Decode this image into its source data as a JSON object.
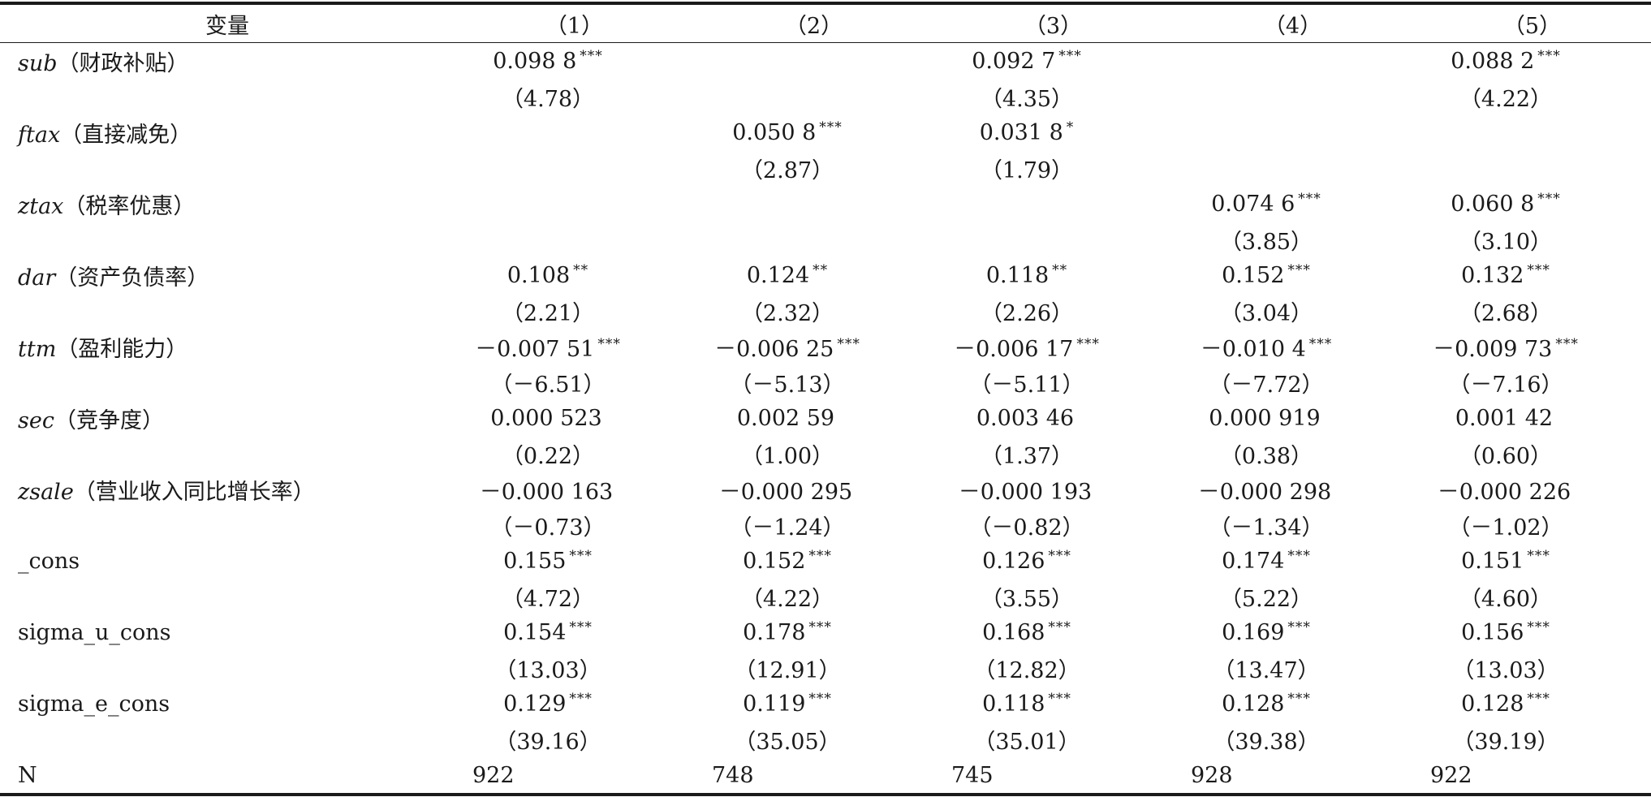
{
  "table": {
    "headers": [
      "变量",
      "（1）",
      "（2）",
      "（3）",
      "（4）",
      "（5）"
    ],
    "rows": [
      {
        "var_italic": "sub",
        "var_rest": "（财政补贴）",
        "coef": [
          "0.098 8",
          "",
          "0.092 7",
          "",
          "0.088 2"
        ],
        "stars": [
          "***",
          "",
          "***",
          "",
          "***"
        ],
        "tstat": [
          "（4.78）",
          "",
          "（4.35）",
          "",
          "（4.22）"
        ]
      },
      {
        "var_italic": "ftax",
        "var_rest": "（直接减免）",
        "coef": [
          "",
          "0.050 8",
          "0.031 8",
          "",
          ""
        ],
        "stars": [
          "",
          "***",
          "*",
          "",
          ""
        ],
        "tstat": [
          "",
          "（2.87）",
          "（1.79）",
          "",
          ""
        ]
      },
      {
        "var_italic": "ztax",
        "var_rest": "（税率优惠）",
        "coef": [
          "",
          "",
          "",
          "0.074 6",
          "0.060 8"
        ],
        "stars": [
          "",
          "",
          "",
          "***",
          "***"
        ],
        "tstat": [
          "",
          "",
          "",
          "（3.85）",
          "（3.10）"
        ]
      },
      {
        "var_italic": "dar",
        "var_rest": "（资产负债率）",
        "coef": [
          "0.108",
          "0.124",
          "0.118",
          "0.152",
          "0.132"
        ],
        "stars": [
          "**",
          "**",
          "**",
          "***",
          "***"
        ],
        "tstat": [
          "（2.21）",
          "（2.32）",
          "（2.26）",
          "（3.04）",
          "（2.68）"
        ]
      },
      {
        "var_italic": "ttm",
        "var_rest": "（盈利能力）",
        "coef": [
          "－0.007 51",
          "－0.006 25",
          "－0.006 17",
          "－0.010 4",
          "－0.009 73"
        ],
        "stars": [
          "***",
          "***",
          "***",
          "***",
          "***"
        ],
        "tstat": [
          "（－6.51）",
          "（－5.13）",
          "（－5.11）",
          "（－7.72）",
          "（－7.16）"
        ]
      },
      {
        "var_italic": "sec",
        "var_rest": "（竞争度）",
        "coef": [
          "0.000 523",
          "0.002 59",
          "0.003 46",
          "0.000 919",
          "0.001 42"
        ],
        "stars": [
          "",
          "",
          "",
          "",
          ""
        ],
        "tstat": [
          "（0.22）",
          "（1.00）",
          "（1.37）",
          "（0.38）",
          "（0.60）"
        ]
      },
      {
        "var_italic": "zsale",
        "var_rest": "（营业收入同比增长率）",
        "coef": [
          "－0.000 163",
          "－0.000 295",
          "－0.000 193",
          "－0.000 298",
          "－0.000 226"
        ],
        "stars": [
          "",
          "",
          "",
          "",
          ""
        ],
        "tstat": [
          "（－0.73）",
          "（－1.24）",
          "（－0.82）",
          "（－1.34）",
          "（－1.02）"
        ]
      },
      {
        "var_italic": "",
        "var_rest": "_cons",
        "coef": [
          "0.155",
          "0.152",
          "0.126",
          "0.174",
          "0.151"
        ],
        "stars": [
          "***",
          "***",
          "***",
          "***",
          "***"
        ],
        "tstat": [
          "（4.72）",
          "（4.22）",
          "（3.55）",
          "（5.22）",
          "（4.60）"
        ]
      },
      {
        "var_italic": "",
        "var_rest": "sigma_u_cons",
        "coef": [
          "0.154",
          "0.178",
          "0.168",
          "0.169",
          "0.156"
        ],
        "stars": [
          "***",
          "***",
          "***",
          "***",
          "***"
        ],
        "tstat": [
          "（13.03）",
          "（12.91）",
          "（12.82）",
          "（13.47）",
          "（13.03）"
        ]
      },
      {
        "var_italic": "",
        "var_rest": "sigma_e_cons",
        "coef": [
          "0.129",
          "0.119",
          "0.118",
          "0.128",
          "0.128"
        ],
        "stars": [
          "***",
          "***",
          "***",
          "***",
          "***"
        ],
        "tstat": [
          "（39.16）",
          "（35.05）",
          "（35.01）",
          "（39.38）",
          "（39.19）"
        ]
      }
    ],
    "n_row": {
      "label": "N",
      "values": [
        "922",
        "748",
        "745",
        "928",
        "922"
      ]
    }
  }
}
